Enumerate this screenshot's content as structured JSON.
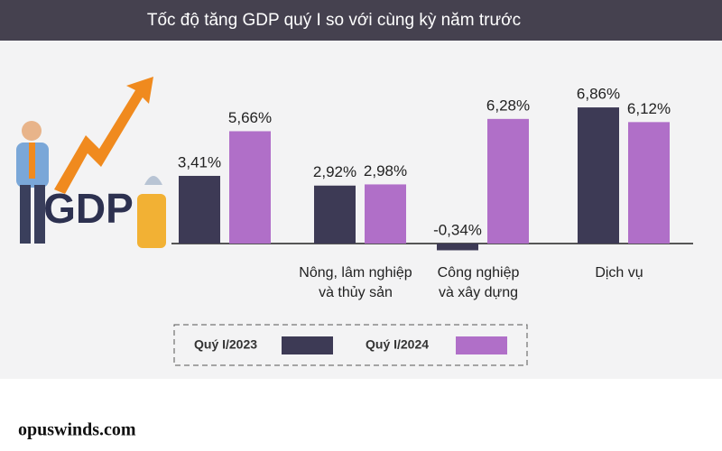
{
  "chart_data": {
    "type": "bar",
    "title": "Tốc độ tăng GDP quý I so với cùng kỳ năm trước",
    "illustration_text": "GDP",
    "categories": [
      null,
      "Nông, lâm nghiệp\nvà thủy sản",
      "Công nghiệp\nvà xây dựng",
      "Dịch vụ"
    ],
    "series": [
      {
        "name": "Quý I/2023",
        "color": "#3d3a55",
        "values": [
          3.41,
          2.92,
          -0.34,
          6.86
        ],
        "value_labels": [
          "3,41%",
          "2,92%",
          "-0,34%",
          "6,86%"
        ]
      },
      {
        "name": "Quý I/2024",
        "color": "#b06fc8",
        "values": [
          5.66,
          2.98,
          6.28,
          6.12
        ],
        "value_labels": [
          "5,66%",
          "2,98%",
          "6,28%",
          "6,12%"
        ]
      }
    ],
    "watermark": "opuswinds.com"
  }
}
